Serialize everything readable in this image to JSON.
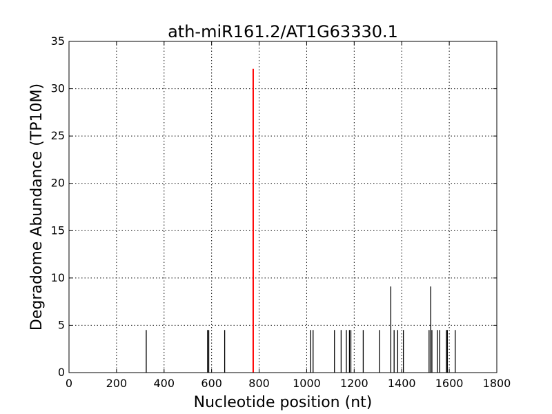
{
  "chart_data": {
    "type": "bar",
    "title": "ath-miR161.2/AT1G63330.1",
    "xlabel": "Nucleotide position (nt)",
    "ylabel": "Degradome Abundance (TP10M)",
    "xlim": [
      0,
      1800
    ],
    "ylim": [
      0,
      35
    ],
    "xticks": [
      0,
      200,
      400,
      600,
      800,
      1000,
      1200,
      1400,
      1600,
      1800
    ],
    "yticks": [
      0,
      5,
      10,
      15,
      20,
      25,
      30,
      35
    ],
    "grid": true,
    "colors": {
      "default": "#000000",
      "highlight": "#ff0000"
    },
    "series": [
      {
        "values": [
          {
            "x": 325,
            "y": 4.5
          },
          {
            "x": 583,
            "y": 4.5
          },
          {
            "x": 588,
            "y": 4.5
          },
          {
            "x": 655,
            "y": 4.5
          },
          {
            "x": 1017,
            "y": 4.5
          },
          {
            "x": 1027,
            "y": 4.5
          },
          {
            "x": 1117,
            "y": 4.5
          },
          {
            "x": 1145,
            "y": 4.5
          },
          {
            "x": 1167,
            "y": 4.5
          },
          {
            "x": 1180,
            "y": 4.5
          },
          {
            "x": 1186,
            "y": 4.5
          },
          {
            "x": 1238,
            "y": 4.5
          },
          {
            "x": 1307,
            "y": 4.5
          },
          {
            "x": 1354,
            "y": 9.1
          },
          {
            "x": 1368,
            "y": 4.5
          },
          {
            "x": 1383,
            "y": 4.5
          },
          {
            "x": 1407,
            "y": 4.5
          },
          {
            "x": 1515,
            "y": 4.5
          },
          {
            "x": 1522,
            "y": 9.1
          },
          {
            "x": 1527,
            "y": 4.5
          },
          {
            "x": 1550,
            "y": 4.5
          },
          {
            "x": 1560,
            "y": 4.5
          },
          {
            "x": 1588,
            "y": 4.5
          },
          {
            "x": 1592,
            "y": 4.5
          },
          {
            "x": 1625,
            "y": 4.5
          }
        ]
      },
      {
        "highlight": true,
        "values": [
          {
            "x": 775,
            "y": 32.1
          }
        ]
      }
    ]
  }
}
